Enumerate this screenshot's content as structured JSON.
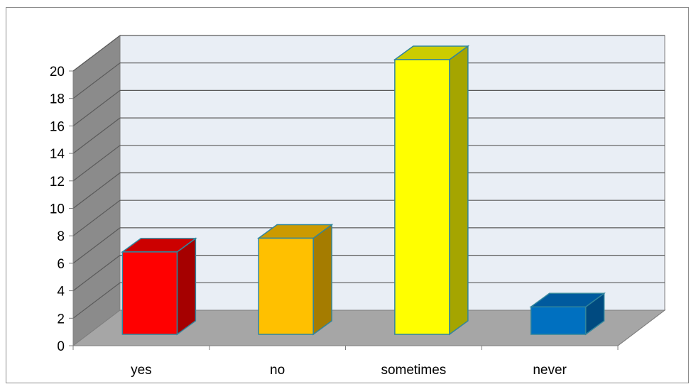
{
  "chart_data": {
    "type": "bar",
    "style": "3d-column",
    "categories": [
      "yes",
      "no",
      "sometimes",
      "never"
    ],
    "values": [
      6,
      7,
      20,
      2
    ],
    "ylim": [
      0,
      20
    ],
    "yticks": [
      0,
      2,
      4,
      6,
      8,
      10,
      12,
      14,
      16,
      18,
      20
    ],
    "grid": true,
    "legend": "none",
    "colors": {
      "bars": [
        "#ff0000",
        "#ffc000",
        "#ffff00",
        "#0070c0"
      ],
      "bar_sides": [
        "#a50000",
        "#a57c00",
        "#a5a500",
        "#004a80"
      ],
      "bar_tops": [
        "#cc0000",
        "#cc9a00",
        "#cccc00",
        "#005a9e"
      ],
      "bar_outline": "#31859c",
      "back_wall": "#e9eef5",
      "side_wall": "#8b8b8b",
      "floor": "#a6a6a6",
      "gridline": "#5a5a5a"
    }
  }
}
